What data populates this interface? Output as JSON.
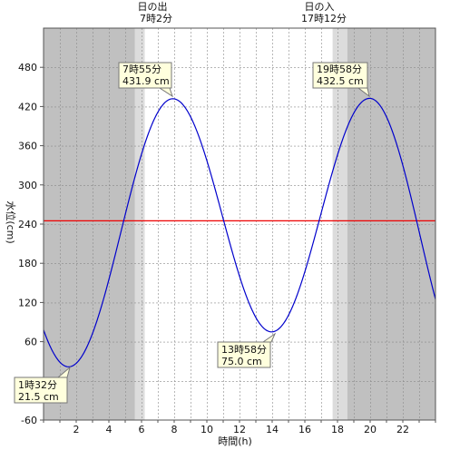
{
  "chart_data": {
    "type": "line",
    "xlabel": "時間(h)",
    "ylabel": "水位(cm)",
    "xlim": [
      0,
      24
    ],
    "ylim": [
      -60,
      540
    ],
    "x_ticks": [
      0,
      2,
      4,
      6,
      8,
      10,
      12,
      14,
      16,
      18,
      20,
      22
    ],
    "y_ticks": [
      -60,
      0,
      60,
      120,
      180,
      240,
      300,
      360,
      420,
      480
    ],
    "reference_line": 245,
    "sunrise": {
      "label": "日の出",
      "time": "7時2分"
    },
    "sunset": {
      "label": "日の入",
      "time": "17時12分"
    },
    "extrema": [
      {
        "x": 1.533,
        "y": 21.5,
        "time": "1時32分",
        "level": "21.5 cm",
        "kind": "low"
      },
      {
        "x": 7.917,
        "y": 431.9,
        "time": "7時55分",
        "level": "431.9 cm",
        "kind": "high"
      },
      {
        "x": 13.967,
        "y": 75.0,
        "time": "13時58分",
        "level": "75.0 cm",
        "kind": "low"
      },
      {
        "x": 19.967,
        "y": 432.5,
        "time": "19時58分",
        "level": "432.5 cm",
        "kind": "high"
      }
    ],
    "start_level": 78,
    "end_level": 125,
    "grid": true
  },
  "colors": {
    "night": "#c0c0c0",
    "twilight": "#dcdcdc",
    "day": "#ffffff",
    "curve": "#0000cc",
    "reference": "#ee0000",
    "callout_fill": "#ffffdd",
    "grid": "#8a8a8a"
  }
}
